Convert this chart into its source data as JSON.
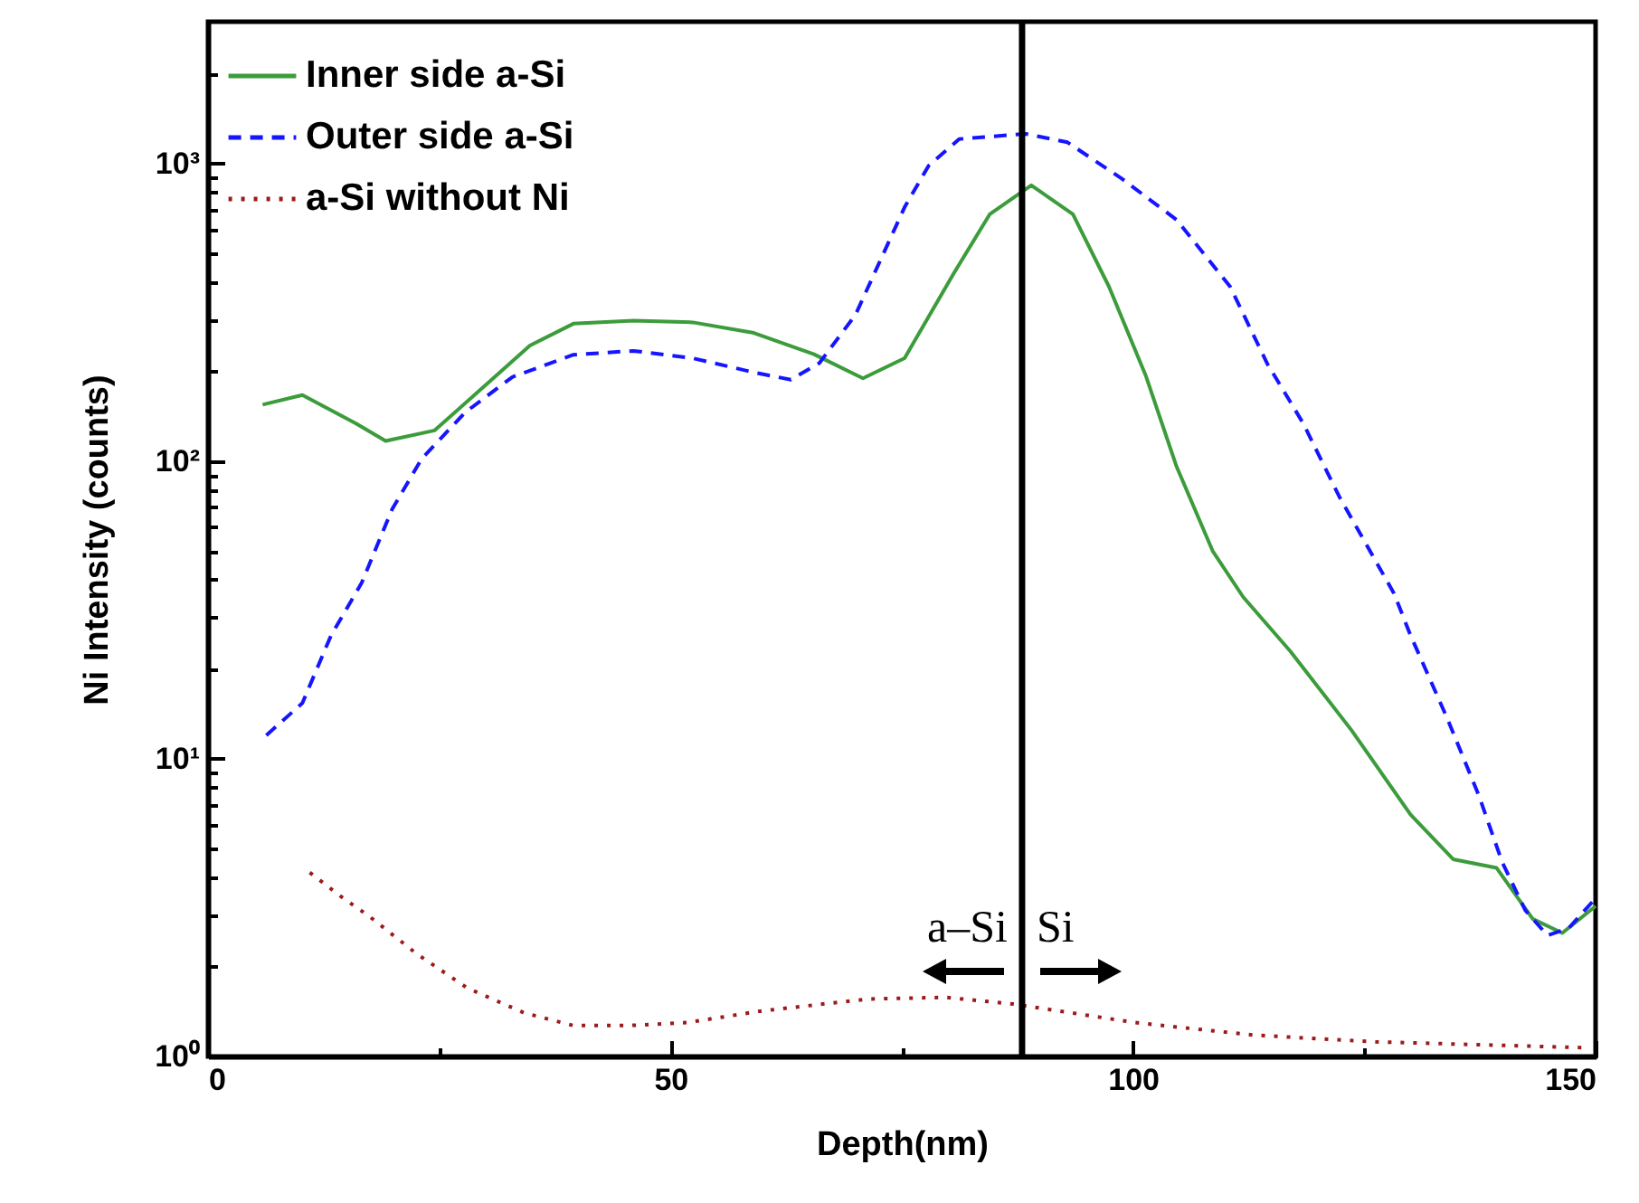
{
  "chart_data": {
    "type": "line",
    "xlabel": "Depth(nm)",
    "ylabel": "Ni Intensity (counts)",
    "log": "y",
    "xlim": [
      0,
      150
    ],
    "xticks": [
      0,
      {
        "value": 25,
        "label": null
      },
      50,
      {
        "value": 75,
        "label": null
      },
      100,
      {
        "value": 125,
        "label": null
      },
      150
    ],
    "ylim": [
      1,
      3000
    ],
    "yticks": [
      {
        "value": 1,
        "label": "10⁰"
      },
      {
        "value": 2,
        "label": null
      },
      {
        "value": 3,
        "label": null
      },
      {
        "value": 4,
        "label": null
      },
      {
        "value": 5,
        "label": null
      },
      {
        "value": 6,
        "label": null
      },
      {
        "value": 7,
        "label": null
      },
      {
        "value": 8,
        "label": null
      },
      {
        "value": 9,
        "label": null
      },
      {
        "value": 10,
        "label": "10¹"
      },
      {
        "value": 20,
        "label": null
      },
      {
        "value": 30,
        "label": null
      },
      {
        "value": 40,
        "label": null
      },
      {
        "value": 50,
        "label": null
      },
      {
        "value": 60,
        "label": null
      },
      {
        "value": 70,
        "label": null
      },
      {
        "value": 80,
        "label": null
      },
      {
        "value": 90,
        "label": null
      },
      {
        "value": 100,
        "label": "10²"
      },
      {
        "value": 200,
        "label": null
      },
      {
        "value": 300,
        "label": null
      },
      {
        "value": 400,
        "label": null
      },
      {
        "value": 500,
        "label": null
      },
      {
        "value": 600,
        "label": null
      },
      {
        "value": 700,
        "label": null
      },
      {
        "value": 800,
        "label": null
      },
      {
        "value": 900,
        "label": null
      },
      {
        "value": 1000,
        "label": "10³"
      },
      {
        "value": 2000,
        "label": null
      }
    ],
    "grid": false,
    "legend": "top left",
    "marker": "none",
    "series": [
      {
        "name": "Inner side a-Si",
        "color": "#3c9c3c",
        "line_style": "solid",
        "x": [
          5.9,
          10.2,
          16,
          19.2,
          24.5,
          29.7,
          34.8,
          39.5,
          46,
          52.4,
          59,
          65.5,
          70.8,
          75.3,
          80.6,
          84.5,
          89,
          93.5,
          97.4,
          101.4,
          104.7,
          108.6,
          111.9,
          117,
          123.6,
          130,
          134.6,
          139.3,
          143.2,
          146.4,
          150
        ],
        "values": [
          155,
          167,
          134,
          117,
          127,
          177,
          245,
          290,
          297,
          293,
          270,
          229,
          190,
          222,
          427,
          676,
          846,
          676,
          386,
          193,
          96,
          50,
          35,
          23,
          12.5,
          6.5,
          4.6,
          4.3,
          2.9,
          2.6,
          3.2
        ]
      },
      {
        "name": "Outer side a-Si",
        "color": "#1515ff",
        "line_style": "dashed",
        "x": [
          6.3,
          10.2,
          13.3,
          16.6,
          19.9,
          23.1,
          27.8,
          32.9,
          39.5,
          46,
          52.4,
          59,
          63,
          66.1,
          70,
          75.3,
          77.9,
          81.2,
          88.4,
          92.9,
          98.8,
          104.7,
          110.5,
          114.5,
          118.4,
          122.3,
          128.2,
          130,
          134,
          137.4,
          139.9,
          142.4,
          144.8,
          147.1,
          150
        ],
        "values": [
          12,
          15.4,
          26,
          39,
          69,
          102,
          146,
          192,
          228,
          235,
          222,
          199,
          188,
          214,
          311,
          714,
          985,
          1210,
          1260,
          1180,
          890,
          648,
          386,
          213,
          134,
          76,
          36,
          26,
          13.6,
          7.5,
          4.5,
          3.1,
          2.55,
          2.7,
          3.4
        ]
      },
      {
        "name": "a-Si without Ni",
        "color": "#9b1b1b",
        "line_style": "dotted",
        "x": [
          11,
          14.3,
          17.6,
          22.5,
          28,
          34.2,
          39.5,
          45.4,
          51.8,
          59.7,
          68.1,
          71.4,
          79.8,
          87.1,
          100.2,
          113,
          126.2,
          149
        ],
        "values": [
          4.15,
          3.46,
          2.93,
          2.22,
          1.7,
          1.4,
          1.27,
          1.27,
          1.3,
          1.42,
          1.52,
          1.56,
          1.58,
          1.5,
          1.3,
          1.18,
          1.12,
          1.07
        ]
      }
    ],
    "ref_lines": [
      {
        "axis": "x",
        "value": 88,
        "color": "#000000"
      }
    ],
    "annotations": [
      "a–Si",
      "Si"
    ]
  }
}
